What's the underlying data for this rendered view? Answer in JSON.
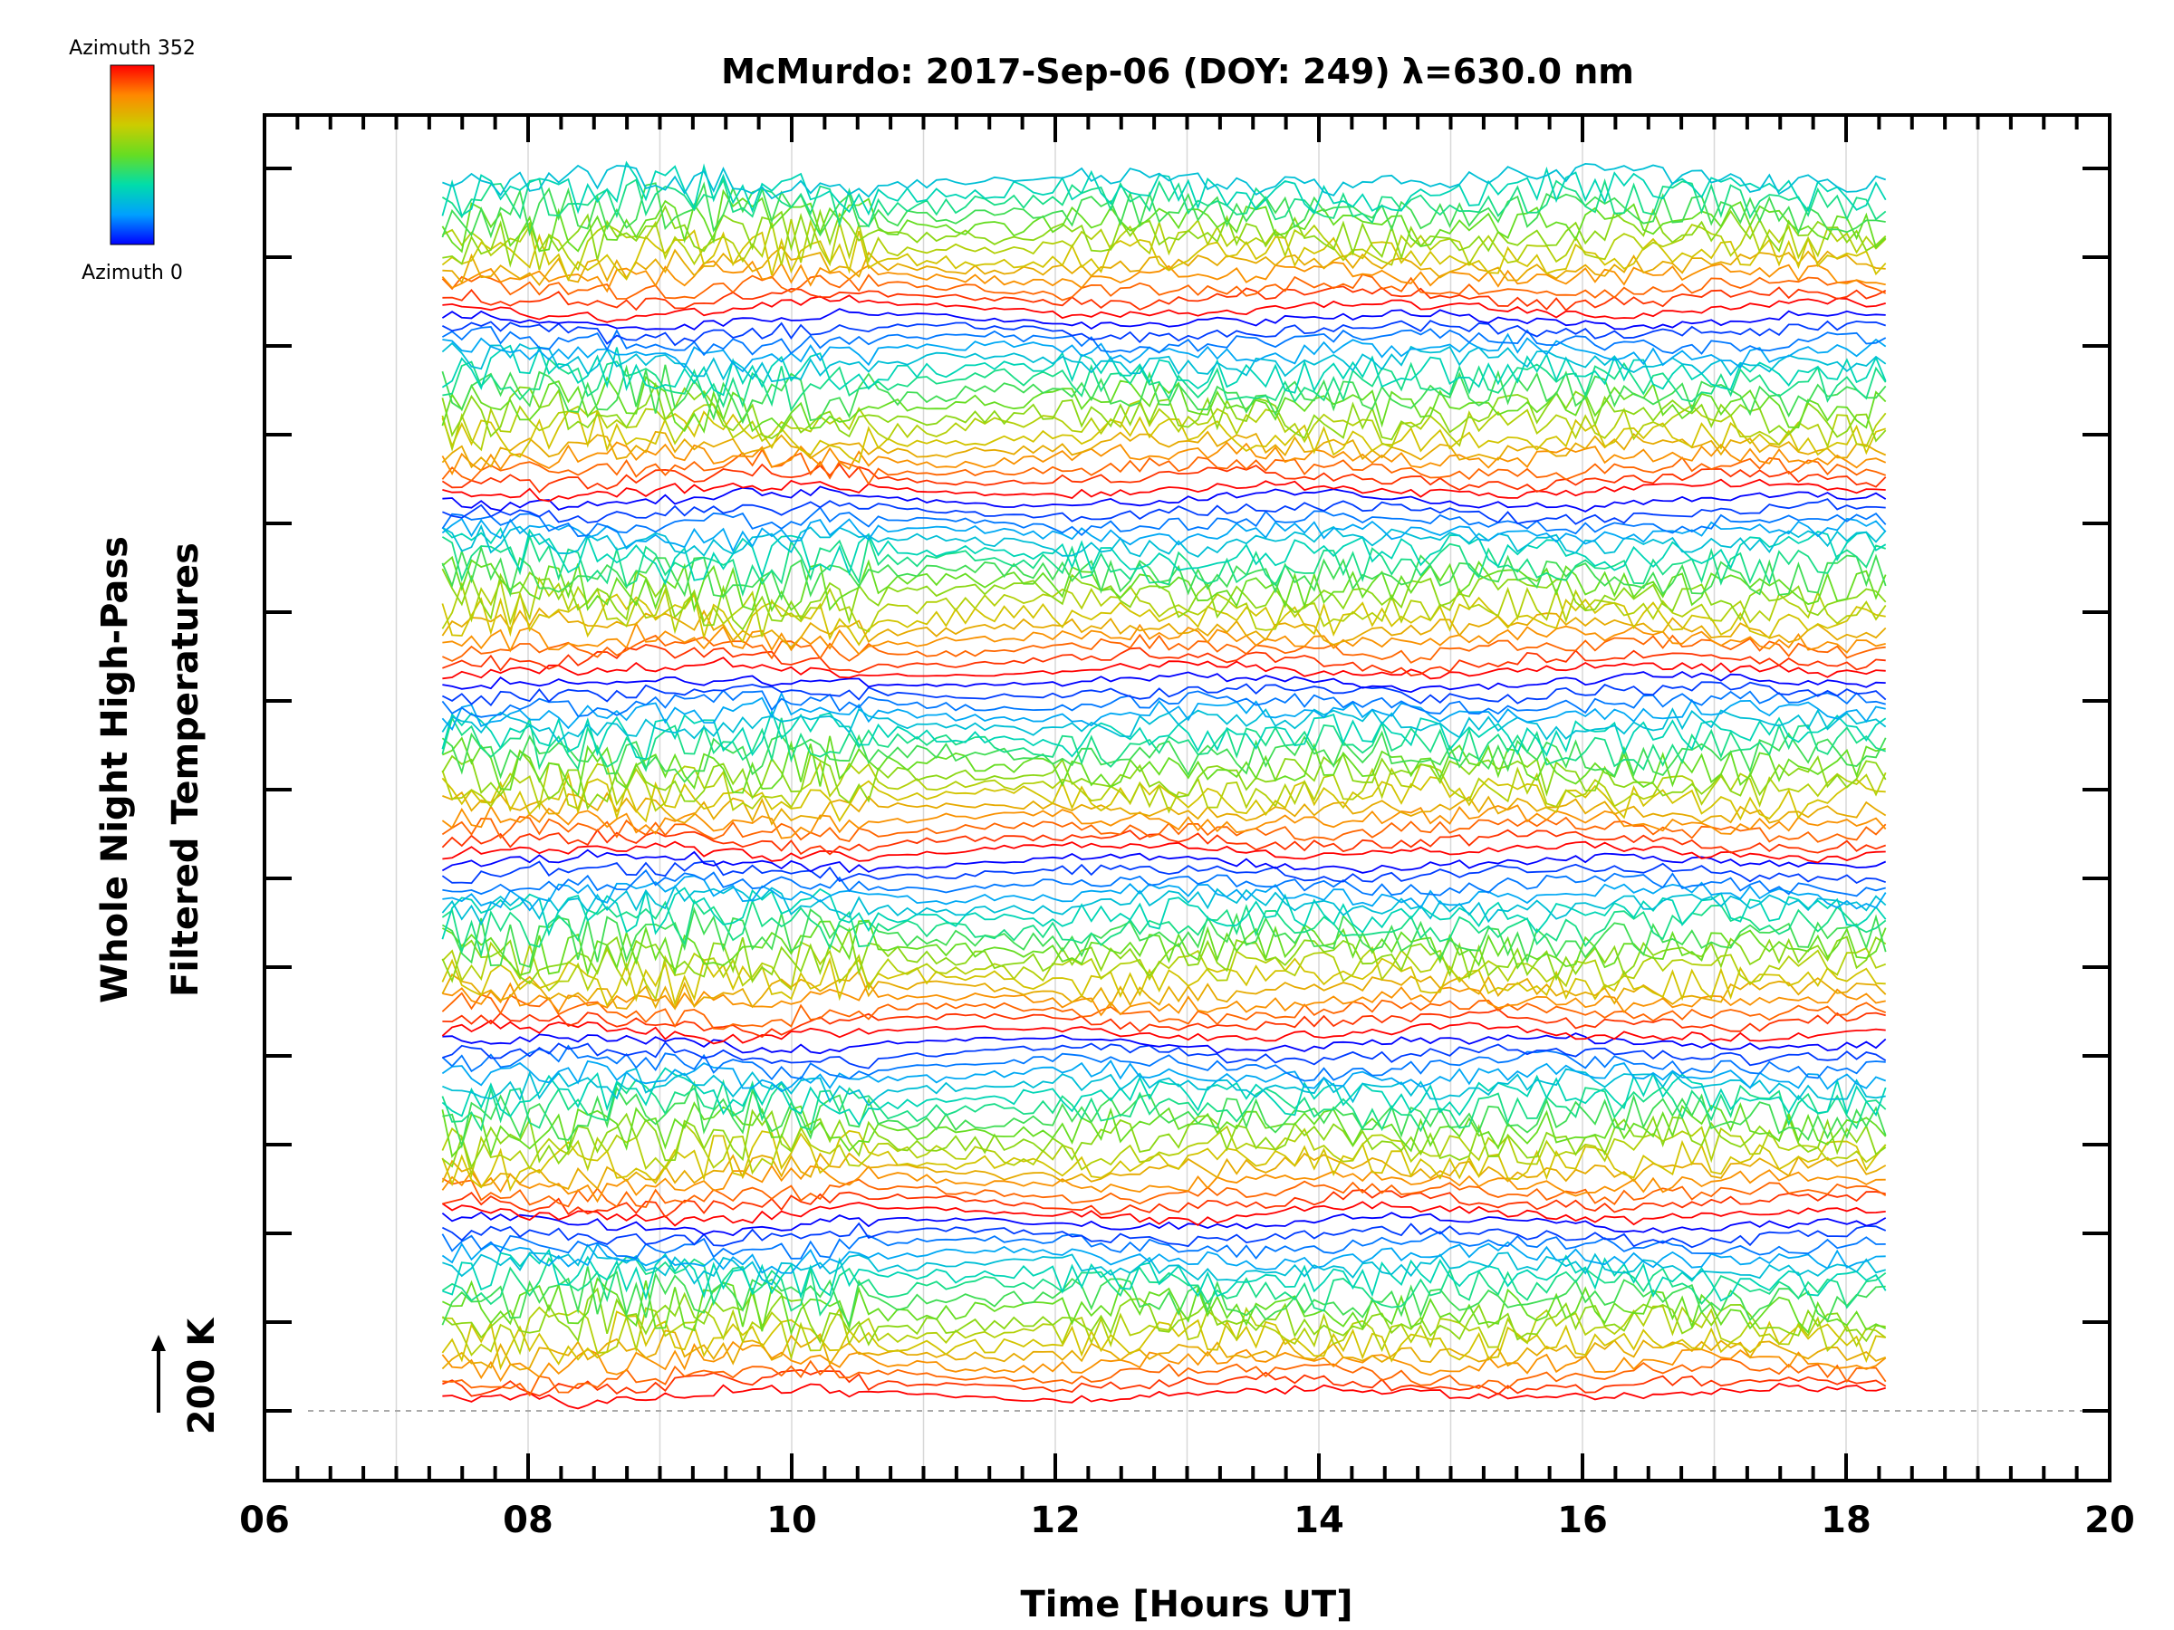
{
  "chart_data": {
    "type": "line",
    "title": "McMurdo: 2017-Sep-06 (DOY: 249) λ=630.0 nm",
    "xlabel": "Time [Hours UT]",
    "ylabel_line1": "Whole Night High-Pass",
    "ylabel_line2": "Filtered Temperatures",
    "xlim": [
      6,
      20
    ],
    "x_ticks": [
      {
        "value": 6,
        "label": "06"
      },
      {
        "value": 8,
        "label": "08"
      },
      {
        "value": 10,
        "label": "10"
      },
      {
        "value": 12,
        "label": "12"
      },
      {
        "value": 14,
        "label": "14"
      },
      {
        "value": 16,
        "label": "16"
      },
      {
        "value": 18,
        "label": "18"
      },
      {
        "value": 20,
        "label": "20"
      }
    ],
    "scale_bar_label": "200 K",
    "scale_bar_kelvin": 200,
    "legend": {
      "top_label": "Azimuth 352",
      "bottom_label": "Azimuth 0",
      "colormap": [
        "#0000ff",
        "#00a0ff",
        "#00ddaa",
        "#66dd22",
        "#cccc00",
        "#ff8800",
        "#ff0000"
      ],
      "min_azimuth": 0,
      "max_azimuth": 352
    },
    "series_summary": {
      "time_start_hours_ut": 7.35,
      "time_end_hours_ut": 18.3,
      "stacked_traces": 115,
      "azimuth_sweeps": 7,
      "note": "Each trace is a high-pass filtered temperature time series for one look direction, vertically offset and colored by azimuth."
    }
  },
  "colors": {
    "axis": "#000000",
    "grid": "#d8d8d8",
    "baseline": "#aaaaaa"
  }
}
